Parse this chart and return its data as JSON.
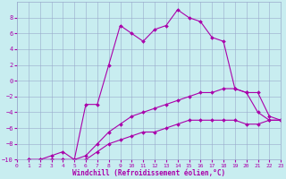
{
  "xlabel": "Windchill (Refroidissement éolien,°C)",
  "xlim": [
    0,
    23
  ],
  "ylim": [
    -10,
    10
  ],
  "xticks": [
    0,
    1,
    2,
    3,
    4,
    5,
    6,
    7,
    8,
    9,
    10,
    11,
    12,
    13,
    14,
    15,
    16,
    17,
    18,
    19,
    20,
    21,
    22,
    23
  ],
  "yticks": [
    -10,
    -8,
    -6,
    -4,
    -2,
    0,
    2,
    4,
    6,
    8
  ],
  "background_color": "#c8edf0",
  "grid_color": "#99aacc",
  "line_color": "#aa00aa",
  "curve_main_x": [
    1,
    2,
    3,
    4,
    5,
    6,
    7,
    8,
    9,
    10,
    11,
    12,
    13,
    14,
    15,
    16,
    17,
    18,
    19,
    20,
    21,
    22,
    23
  ],
  "curve_main_y": [
    -10,
    -10,
    -9.5,
    -9,
    -10,
    -3,
    -3,
    2,
    7,
    6,
    5,
    6.5,
    7,
    9,
    8,
    7.5,
    5.5,
    5,
    -1,
    -1.5,
    -4,
    -5,
    -5
  ],
  "curve_mid_x": [
    1,
    2,
    3,
    4,
    5,
    6,
    7,
    8,
    9,
    10,
    11,
    12,
    13,
    14,
    15,
    16,
    17,
    18,
    19,
    20,
    21,
    22,
    23
  ],
  "curve_mid_y": [
    -10,
    -10,
    -10,
    -10,
    -10,
    -9.5,
    -8,
    -6.5,
    -5.5,
    -4.5,
    -4,
    -3.5,
    -3,
    -2.5,
    -2,
    -1.5,
    -1.5,
    -1,
    -1,
    -1.5,
    -1.5,
    -4.5,
    -5
  ],
  "curve_low_x": [
    1,
    2,
    3,
    4,
    5,
    6,
    7,
    8,
    9,
    10,
    11,
    12,
    13,
    14,
    15,
    16,
    17,
    18,
    19,
    20,
    21,
    22,
    23
  ],
  "curve_low_y": [
    -10,
    -10,
    -10,
    -10,
    -10,
    -10,
    -9,
    -8,
    -7.5,
    -7,
    -6.5,
    -6.5,
    -6,
    -5.5,
    -5,
    -5,
    -5,
    -5,
    -5,
    -5.5,
    -5.5,
    -5,
    -5
  ],
  "marker": "D",
  "marker_size": 2.0,
  "linewidth": 0.8
}
